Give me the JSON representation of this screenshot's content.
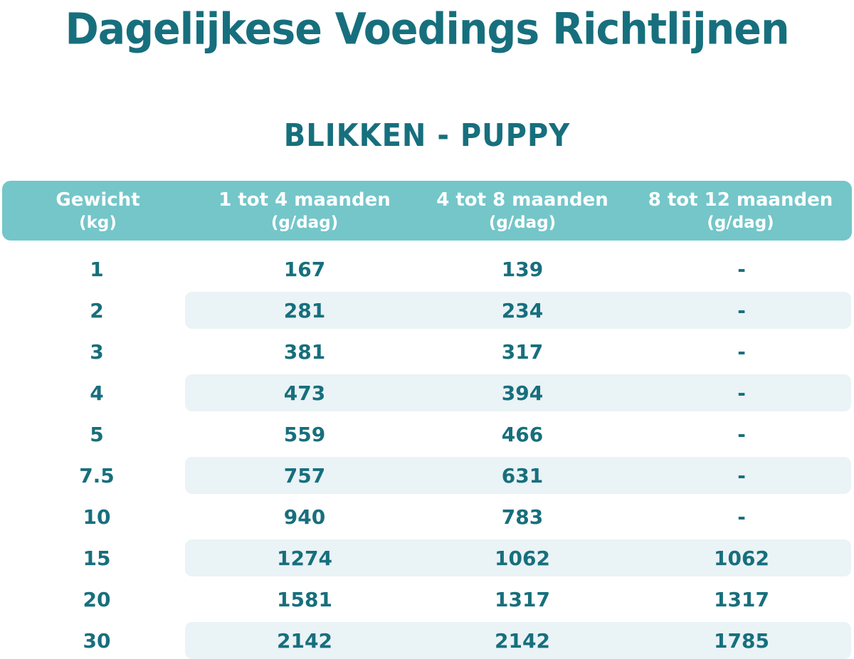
{
  "title": "Dagelijkese Voedings Richtlijnen",
  "subtitle": "BLIKKEN - PUPPY",
  "colors": {
    "text_dark_teal": "#176f7d",
    "header_band_teal": "#74c6c9",
    "row_stripe_light": "#eaf3f6",
    "background": "#ffffff",
    "header_text": "#ffffff"
  },
  "chart_data": {
    "type": "table",
    "title": "Dagelijkese Voedings Richtlijnen",
    "subtitle": "BLIKKEN - PUPPY",
    "columns": [
      {
        "label": "Gewicht",
        "unit": "(kg)"
      },
      {
        "label": "1 tot 4 maanden",
        "unit": "(g/dag)"
      },
      {
        "label": "4 tot 8 maanden",
        "unit": "(g/dag)"
      },
      {
        "label": "8 tot 12 maanden",
        "unit": "(g/dag)"
      }
    ],
    "rows": [
      [
        "1",
        "167",
        "139",
        "-"
      ],
      [
        "2",
        "281",
        "234",
        "-"
      ],
      [
        "3",
        "381",
        "317",
        "-"
      ],
      [
        "4",
        "473",
        "394",
        "-"
      ],
      [
        "5",
        "559",
        "466",
        "-"
      ],
      [
        "7.5",
        "757",
        "631",
        "-"
      ],
      [
        "10",
        "940",
        "783",
        "-"
      ],
      [
        "15",
        "1274",
        "1062",
        "1062"
      ],
      [
        "20",
        "1581",
        "1317",
        "1317"
      ],
      [
        "30",
        "2142",
        "2142",
        "1785"
      ]
    ],
    "layout": {
      "striped_row_weights": [
        "2",
        "4",
        "7.5",
        "15",
        "30"
      ],
      "legend": "none",
      "grid": "off"
    }
  }
}
